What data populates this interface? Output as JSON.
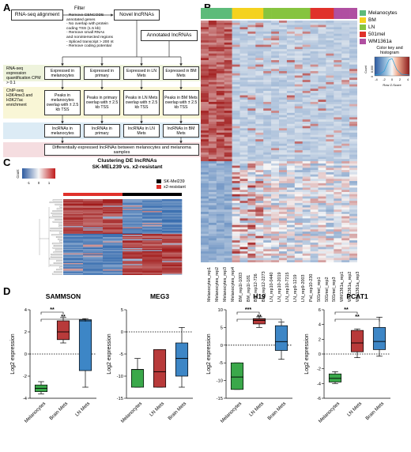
{
  "panels": {
    "a": "A",
    "b": "B",
    "c": "C",
    "d": "D"
  },
  "flow": {
    "rnaseq": "RNA-seq alignment",
    "filter": "Filter",
    "filter_details": [
      "- Remove GENCODE",
      "  annotated genes",
      "- No overlap with protein",
      "  coding TSS (1.5 kb)",
      "- Remove small RNAs",
      "  and nonintersected regions",
      "- Spliced transcript > 200 nt",
      "- Remove coding potential"
    ],
    "novel": "Novel lncRNAs",
    "annotated": "Annotated lncRNAs",
    "quant_label": "RNA-seq expression quantification CPM > 0.1",
    "chip_label": "ChIP-seq H3K4me3 and H3K27ac enrichment",
    "expressed": [
      "Expressed in melanocytes",
      "Expressed in primary",
      "Expressed in LN Mets",
      "Expressed in BM Mets"
    ],
    "peaks": [
      "Peaks in melanocytes overlap with ± 2.5 kb TSS",
      "Peaks in primary overlap with ± 2.5 kb TSS",
      "Peaks in LN Mets overlap with ± 2.5 kb TSS",
      "Peaks in BM Mets overlap with ± 2.5 kb TSS"
    ],
    "lnc": [
      "lncRNAs in melanocytes",
      "lncRNAs in primary",
      "lncRNAs in LN Mets",
      "lncRNAs in BM Mets"
    ],
    "diff": "Differentially expressed lncRNAs between melanocytes and melanoma samples"
  },
  "heatmap_b": {
    "groups": [
      {
        "name": "Melanocytes",
        "color": "#5dbb7a"
      },
      {
        "name": "BM",
        "color": "#f4d21f"
      },
      {
        "name": "LN",
        "color": "#86c43f"
      },
      {
        "name": "501mel",
        "color": "#e0312b"
      },
      {
        "name": "WM1361a",
        "color": "#b04fa1"
      }
    ],
    "samples": [
      "Melanocytes_rep1",
      "Melanocytes_rep2",
      "Melanocytes_rep3",
      "Melanocytes_rep4",
      "BM_rep1I-1003",
      "BM_rep1I-181",
      "BM_rep12-726",
      "BM_rep12-2273",
      "LN_rep10-0440",
      "LN_rep10-2019",
      "LN_rep10-7215",
      "LN_rep9-1219",
      "LN_rep9-2003",
      "Pal_rep10-230",
      "501mel_rep1",
      "501mel_rep2",
      "501mel_rep3",
      "WM1361a_rep1",
      "WM1361a_rep2",
      "WM1361a_rep3"
    ],
    "key_title": "Color key and histogram",
    "key_ticks": [
      "-4",
      "-2",
      "0",
      "2",
      "4"
    ],
    "key_xlabel": "Row Z-Score",
    "key_ylabel": "Count",
    "count_ticks": [
      "0",
      "2,000",
      "4,000",
      "6,000",
      "8,000"
    ]
  },
  "heatmap_c": {
    "title_line1": "Clustering DE lncRNAs",
    "title_line2": "SK-MEL239 vs. x2-resistant",
    "key_ticks": [
      "-1",
      "0",
      "1"
    ],
    "key_ylabel": "Count",
    "legend": [
      {
        "name": "SK-Mel239",
        "color": "#000000"
      },
      {
        "name": "x2-resistant",
        "color": "#e0312b"
      }
    ]
  },
  "chart_data": [
    {
      "type": "box",
      "title": "SAMMSON",
      "ylabel": "Log2 expression",
      "ylim": [
        -4,
        4
      ],
      "yticks": [
        "-4",
        "-2",
        "0",
        "2",
        "4"
      ],
      "categories": [
        "Melanocytes",
        "Brain Mets",
        "LN Mets"
      ],
      "colors": [
        "#3aa84a",
        "#b83a3a",
        "#3d86c6"
      ],
      "boxes": [
        {
          "min": -3.6,
          "q1": -3.4,
          "median": -3.1,
          "q3": -2.8,
          "max": -2.5
        },
        {
          "min": 1.0,
          "q1": 1.3,
          "median": 2.0,
          "q3": 3.0,
          "max": 3.3
        },
        {
          "min": -3.0,
          "q1": -1.5,
          "median": 3.0,
          "q3": 3.1,
          "max": 3.2
        }
      ],
      "significance": [
        {
          "from": 0,
          "to": 1,
          "label": "**"
        },
        {
          "from": 0,
          "to": 2,
          "label": "**"
        }
      ],
      "dotted_line": 0
    },
    {
      "type": "box",
      "title": "MEG3",
      "ylabel": "Log2 expression",
      "ylim": [
        -15,
        5
      ],
      "yticks": [
        "-15",
        "-10",
        "-5",
        "0",
        "5"
      ],
      "categories": [
        "Melanocytes",
        "LN Mets",
        "Brain Mets"
      ],
      "colors": [
        "#3aa84a",
        "#b83a3a",
        "#3d86c6"
      ],
      "boxes": [
        {
          "min": -12.5,
          "q1": -12.5,
          "median": -8.5,
          "q3": -8.5,
          "max": -6.0
        },
        {
          "min": -12.5,
          "q1": -12.5,
          "median": -9.0,
          "q3": -4.0,
          "max": -4.0
        },
        {
          "min": -12.5,
          "q1": -10.0,
          "median": -6.0,
          "q3": -2.5,
          "max": 1.0
        }
      ],
      "significance": [],
      "dotted_line": 0
    },
    {
      "type": "box",
      "title": "H19",
      "ylabel": "Log2 expression",
      "ylim": [
        -15,
        10
      ],
      "yticks": [
        "-15",
        "-10",
        "-5",
        "0",
        "5",
        "10"
      ],
      "categories": [
        "Melanocytes",
        "LN Mets",
        "Brain Mets"
      ],
      "colors": [
        "#3aa84a",
        "#b83a3a",
        "#3d86c6"
      ],
      "boxes": [
        {
          "min": -12.5,
          "q1": -12.5,
          "median": -9.0,
          "q3": -5.0,
          "max": -5.0
        },
        {
          "min": 5.0,
          "q1": 6.0,
          "median": 7.0,
          "q3": 7.5,
          "max": 8.0
        },
        {
          "min": -4.0,
          "q1": -1.5,
          "median": 1.0,
          "q3": 5.5,
          "max": 6.5
        }
      ],
      "significance": [
        {
          "from": 0,
          "to": 1,
          "label": "***"
        },
        {
          "from": 0,
          "to": 2,
          "label": "**"
        }
      ],
      "dotted_line": 0
    },
    {
      "type": "box",
      "title": "PCAT1",
      "ylabel": "Log2 expression",
      "ylim": [
        -6,
        6
      ],
      "yticks": [
        "-6",
        "-4",
        "-2",
        "0",
        "2",
        "4",
        "6"
      ],
      "categories": [
        "Melanocytes",
        "LN Mets",
        "Brain Mets"
      ],
      "colors": [
        "#3aa84a",
        "#b83a3a",
        "#3d86c6"
      ],
      "boxes": [
        {
          "min": -4.0,
          "q1": -3.8,
          "median": -3.3,
          "q3": -2.7,
          "max": -2.4
        },
        {
          "min": -0.5,
          "q1": 0.3,
          "median": 1.5,
          "q3": 3.2,
          "max": 3.4
        },
        {
          "min": -0.3,
          "q1": 0.6,
          "median": 1.7,
          "q3": 3.6,
          "max": 5.0
        }
      ],
      "significance": [
        {
          "from": 0,
          "to": 1,
          "label": "**"
        },
        {
          "from": 0,
          "to": 2,
          "label": "**"
        }
      ],
      "dotted_line": 0
    }
  ]
}
